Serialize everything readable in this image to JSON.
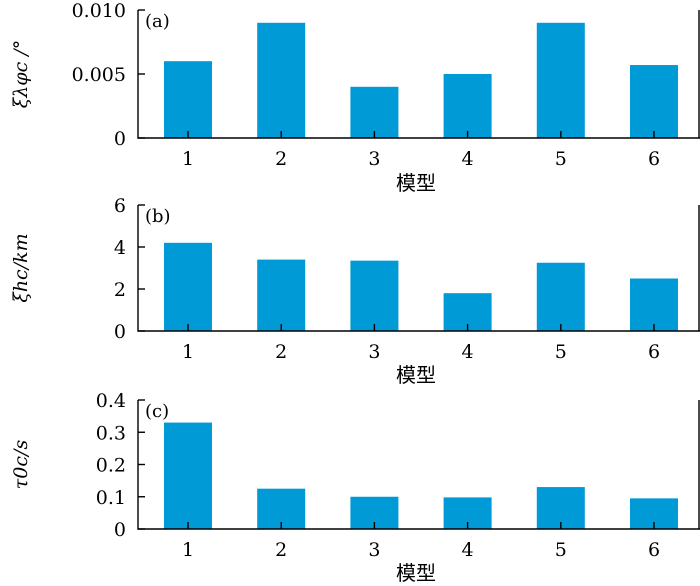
{
  "chart_data": [
    {
      "type": "bar",
      "panel_label": "(a)",
      "categories": [
        "1",
        "2",
        "3",
        "4",
        "5",
        "6"
      ],
      "values": [
        0.006,
        0.009,
        0.004,
        0.005,
        0.009,
        0.0057
      ],
      "ylim": [
        0,
        0.01
      ],
      "yticks": [
        "0",
        "0.005",
        "0.010"
      ],
      "ylabel": "ξλφc /°",
      "xlabel": "模型",
      "bar_color": "#009ad6",
      "grid": false
    },
    {
      "type": "bar",
      "panel_label": "(b)",
      "categories": [
        "1",
        "2",
        "3",
        "4",
        "5",
        "6"
      ],
      "values": [
        4.2,
        3.4,
        3.35,
        1.8,
        3.25,
        2.5
      ],
      "ylim": [
        0,
        6
      ],
      "yticks": [
        "0",
        "2",
        "4",
        "6"
      ],
      "ylabel": "ξhc/km",
      "xlabel": "模型",
      "bar_color": "#009ad6",
      "grid": false
    },
    {
      "type": "bar",
      "panel_label": "(c)",
      "categories": [
        "1",
        "2",
        "3",
        "4",
        "5",
        "6"
      ],
      "values": [
        0.33,
        0.125,
        0.1,
        0.098,
        0.13,
        0.095
      ],
      "ylim": [
        0,
        0.4
      ],
      "yticks": [
        "0",
        "0.1",
        "0.2",
        "0.3",
        "0.4"
      ],
      "ylabel": "τ0c/s",
      "xlabel": "模型",
      "bar_color": "#009ad6",
      "grid": false
    }
  ]
}
